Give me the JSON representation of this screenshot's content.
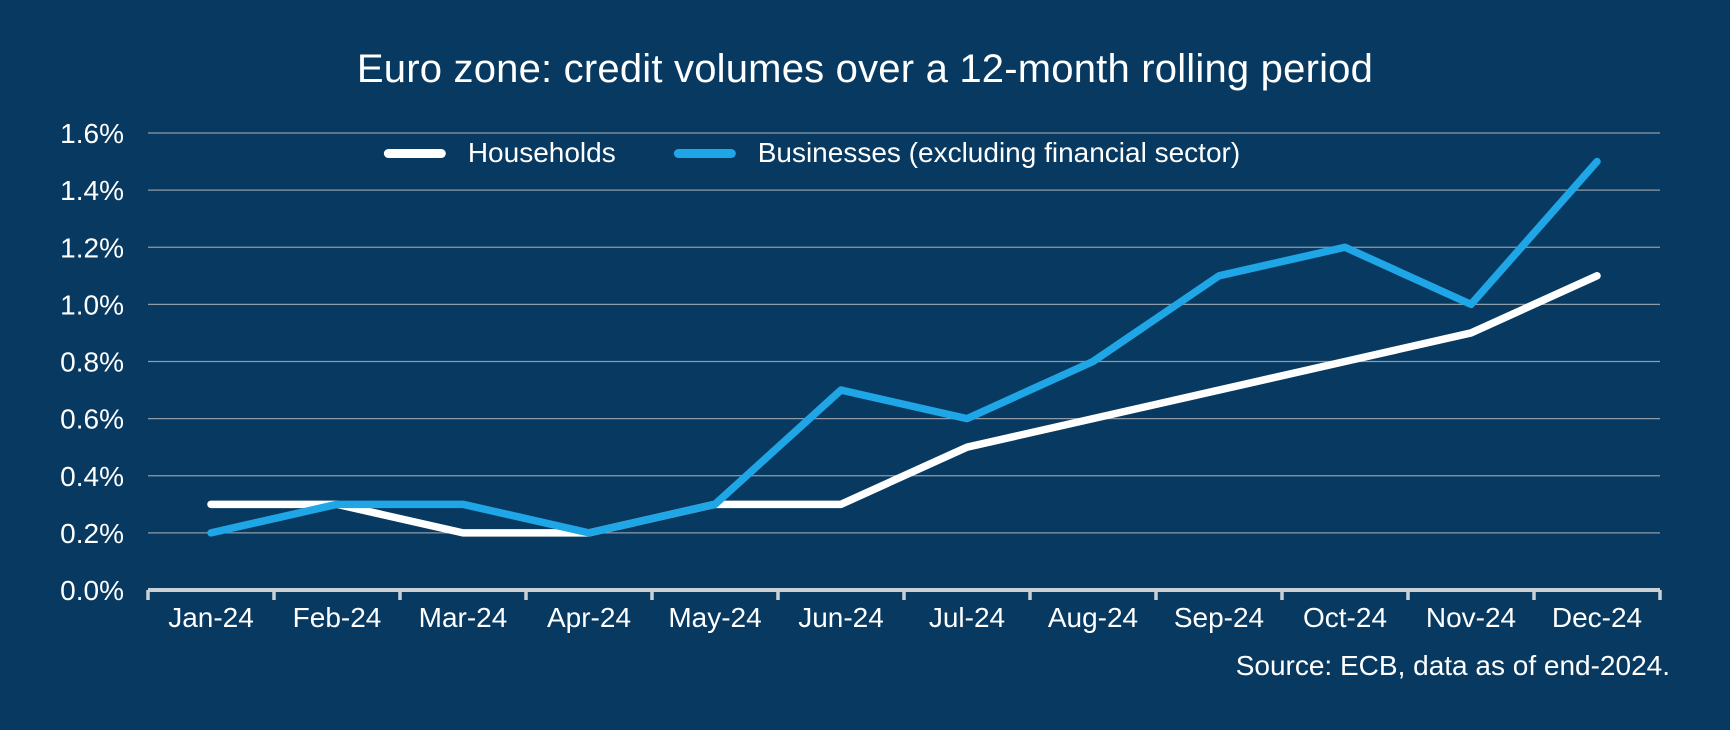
{
  "title": "Euro zone: credit volumes over a 12-month rolling period",
  "legend": {
    "items": [
      {
        "label": "Households",
        "color": "#ffffff"
      },
      {
        "label": "Businesses (excluding financial sector)",
        "color": "#1fa6e6"
      }
    ]
  },
  "source_note": "Source: ECB, data as of end-2024.",
  "colors": {
    "background": "#073961",
    "households_line": "#ffffff",
    "businesses_line": "#1fa6e6",
    "gridline": "#8e9ca9",
    "axis": "#c9d0d6",
    "text": "#ffffff"
  },
  "chart_data": {
    "type": "line",
    "title": "Euro zone: credit volumes over a 12-month rolling period",
    "categories": [
      "Jan-24",
      "Feb-24",
      "Mar-24",
      "Apr-24",
      "May-24",
      "Jun-24",
      "Jul-24",
      "Aug-24",
      "Sep-24",
      "Oct-24",
      "Nov-24",
      "Dec-24"
    ],
    "series": [
      {
        "name": "Households",
        "color": "#ffffff",
        "values": [
          0.3,
          0.3,
          0.2,
          0.2,
          0.3,
          0.3,
          0.5,
          0.6,
          0.7,
          0.8,
          0.9,
          1.1
        ]
      },
      {
        "name": "Businesses (excluding financial sector)",
        "color": "#1fa6e6",
        "values": [
          0.2,
          0.3,
          0.3,
          0.2,
          0.3,
          0.7,
          0.6,
          0.8,
          1.1,
          1.2,
          1.0,
          1.5
        ]
      }
    ],
    "xlabel": "",
    "ylabel": "",
    "ylim": [
      0,
      1.6
    ],
    "ytick_values": [
      0.0,
      0.2,
      0.4,
      0.6,
      0.8,
      1.0,
      1.2,
      1.4,
      1.6
    ],
    "ytick_labels": [
      "0.0%",
      "0.2%",
      "0.4%",
      "0.6%",
      "0.8%",
      "1.0%",
      "1.2%",
      "1.4%",
      "1.6%"
    ],
    "grid": true,
    "legend_position": "top-center",
    "annotations": [
      "Source: ECB, data as of end-2024."
    ]
  }
}
